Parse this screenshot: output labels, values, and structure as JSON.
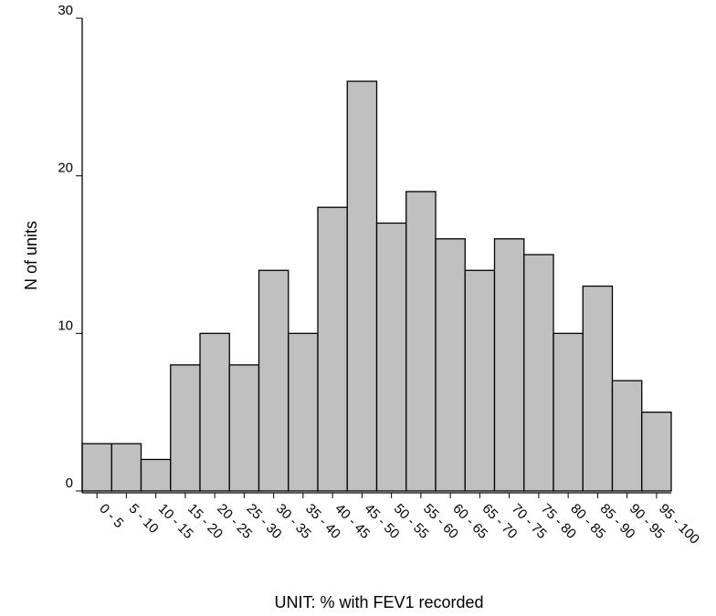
{
  "chart_data": {
    "type": "bar",
    "x_label": "UNIT: % with FEV1 recorded",
    "y_label": "N of units",
    "categories": [
      "0 - 5",
      "5 - 10",
      "10 - 15",
      "15 - 20",
      "20 - 25",
      "25 - 30",
      "30 - 35",
      "35 - 40",
      "40 - 45",
      "45 - 50",
      "50 - 55",
      "55 - 60",
      "60 - 65",
      "65 - 70",
      "70 - 75",
      "75 - 80",
      "80 - 85",
      "85 - 90",
      "90 - 95",
      "95 - 100"
    ],
    "values": [
      3,
      3,
      2,
      8,
      10,
      8,
      14,
      10,
      18,
      26,
      17,
      19,
      16,
      14,
      16,
      15,
      10,
      13,
      7,
      5
    ],
    "color": "#c0c0c0",
    "ylim": [
      0,
      30
    ],
    "yticks": [
      0,
      10,
      20,
      30
    ]
  }
}
